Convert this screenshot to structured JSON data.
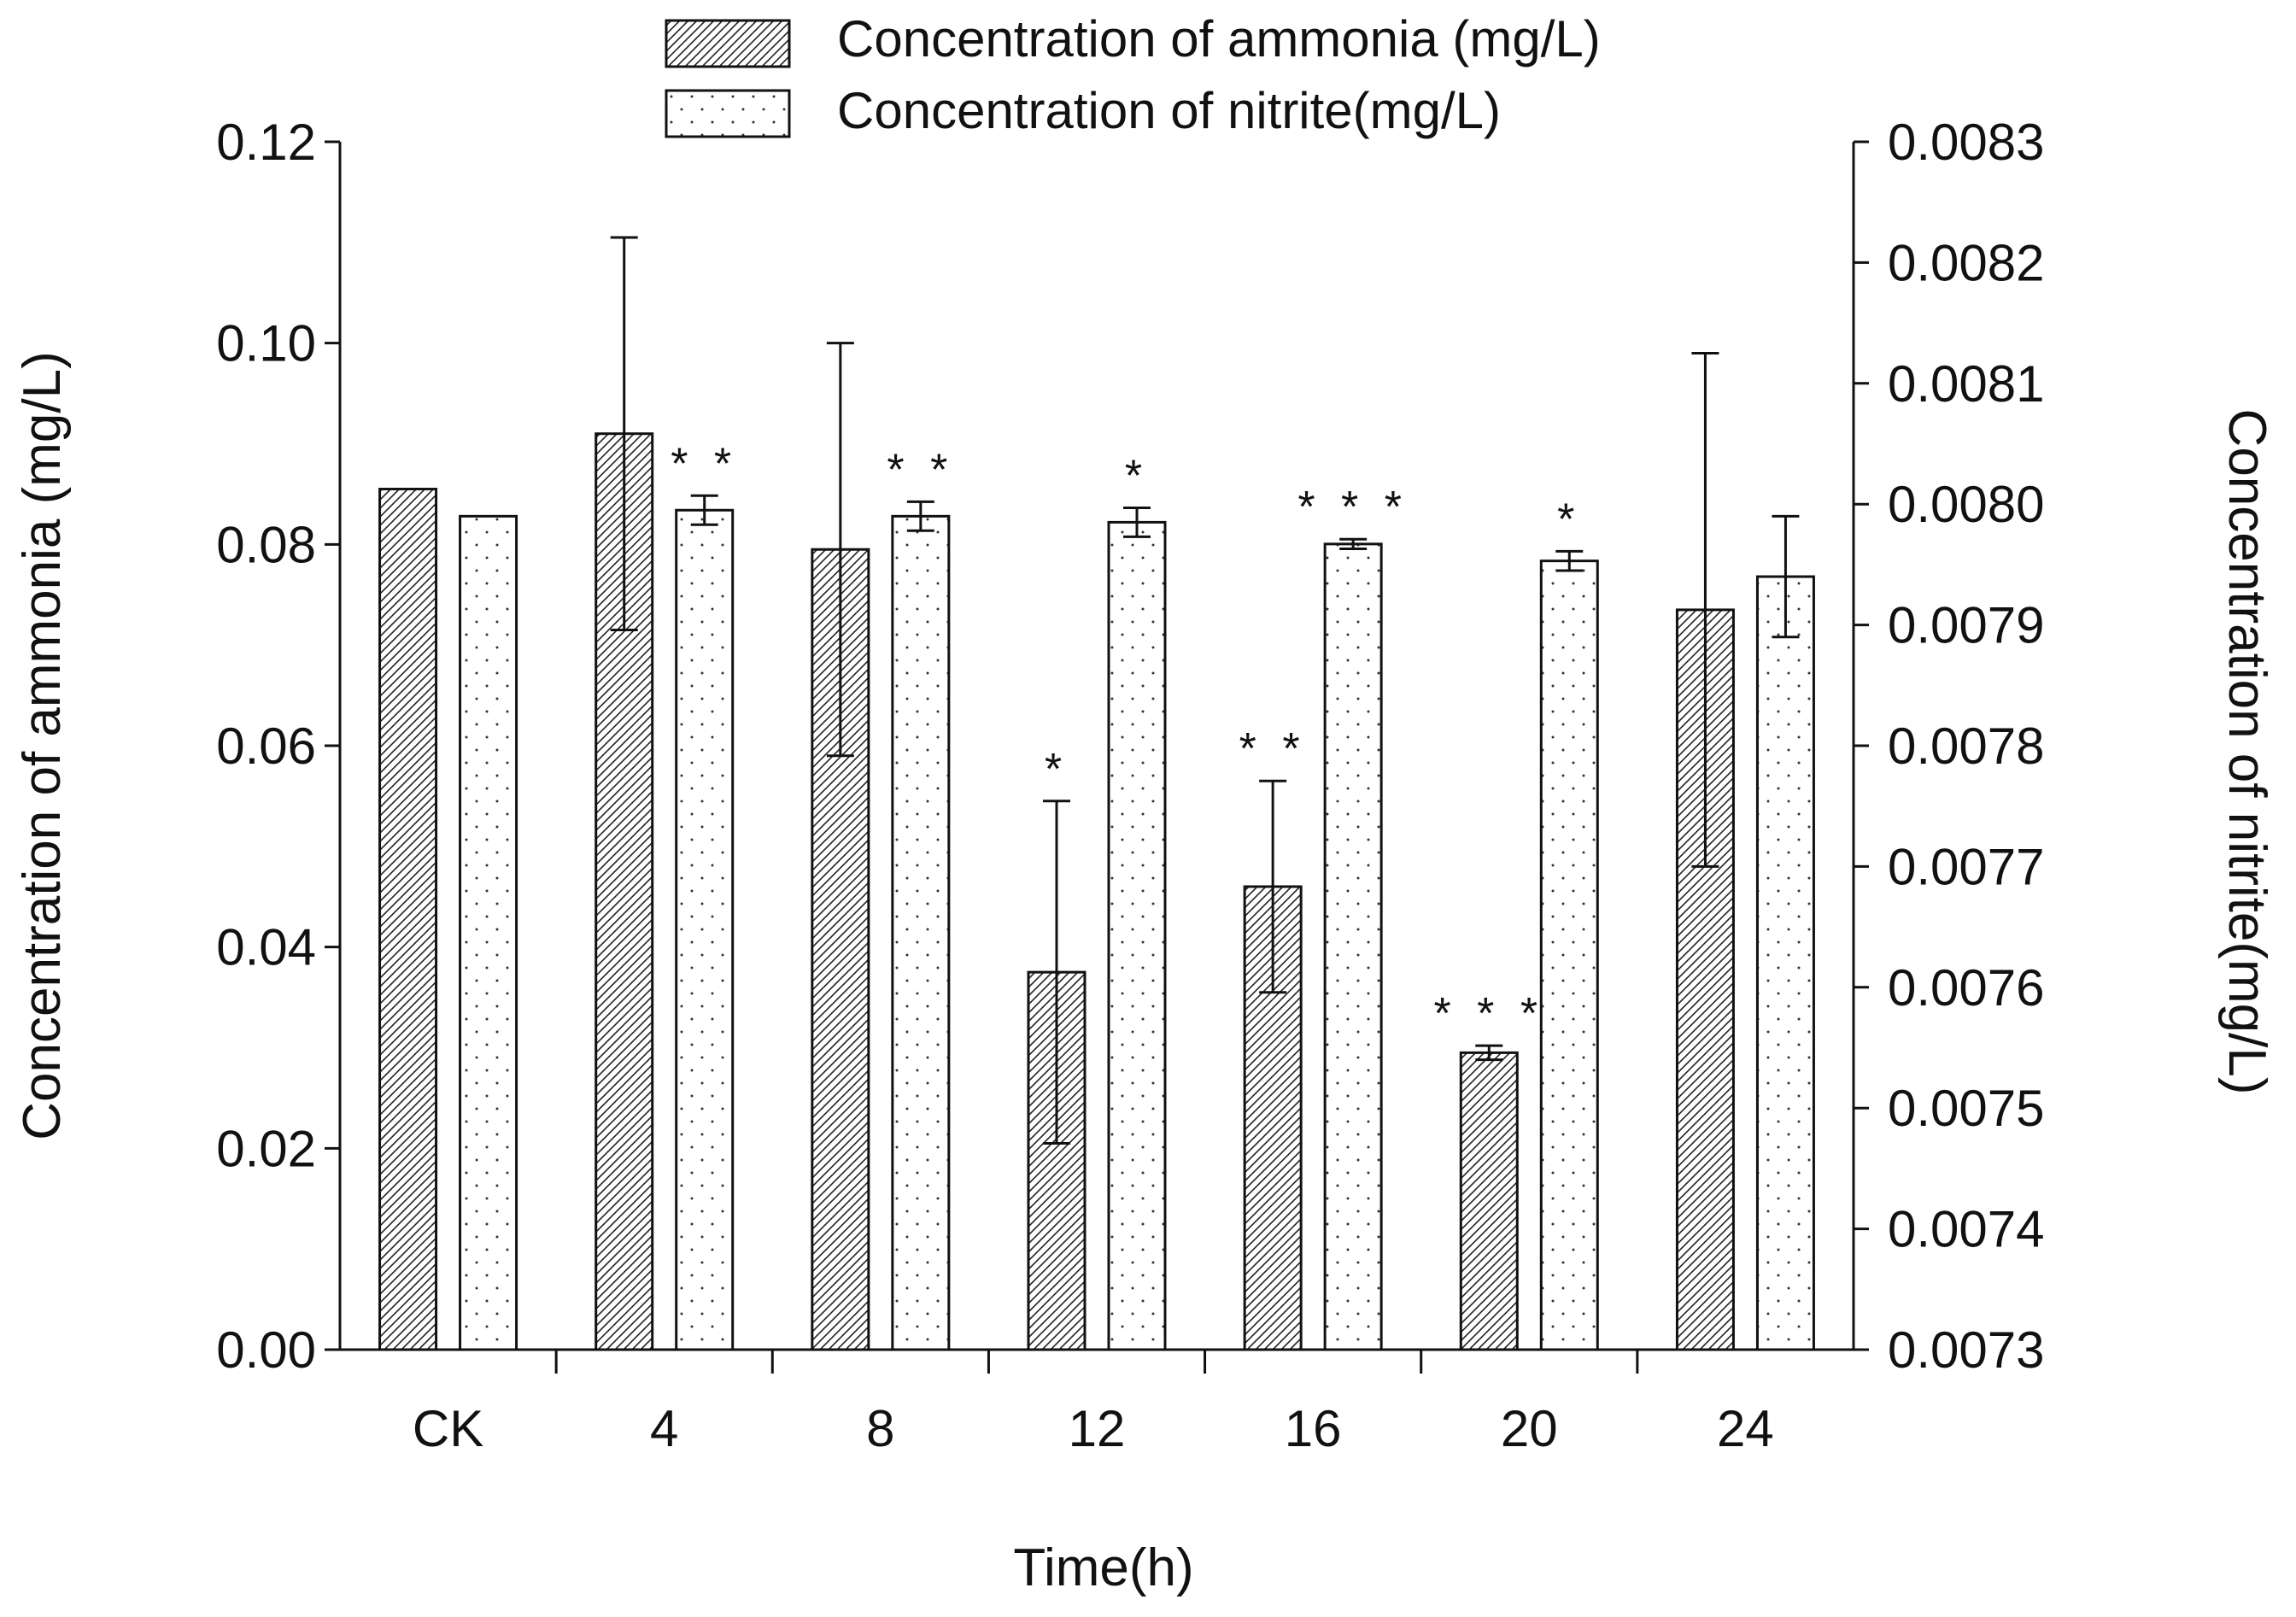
{
  "chart_data": {
    "type": "bar",
    "categories": [
      "CK",
      "4",
      "8",
      "12",
      "16",
      "20",
      "24"
    ],
    "xlabel": "Time(h)",
    "y_left_label": "Concentration of ammonia (mg/L)",
    "y_right_label": "Concentration of nitrite(mg/L)",
    "y_left_lim": [
      0,
      0.12
    ],
    "y_left_ticks": [
      "0.00",
      "0.02",
      "0.04",
      "0.06",
      "0.08",
      "0.10",
      "0.12"
    ],
    "y_right_lim": [
      0.0073,
      0.0083
    ],
    "y_right_ticks": [
      "0.0073",
      "0.0074",
      "0.0075",
      "0.0076",
      "0.0077",
      "0.0078",
      "0.0079",
      "0.0080",
      "0.0081",
      "0.0082",
      "0.0083"
    ],
    "series": [
      {
        "name": "Concentration of ammonia (mg/L)",
        "axis": "left",
        "pattern": "hatched",
        "values": [
          0.0855,
          0.091,
          0.0795,
          0.0375,
          0.046,
          0.0295,
          0.0735
        ],
        "errors": [
          0,
          0.0195,
          0.0205,
          0.017,
          0.0105,
          0.0007,
          0.0255
        ],
        "significance": [
          "",
          "",
          "",
          "*",
          "* *",
          "* * *",
          ""
        ]
      },
      {
        "name": "Concentration of nitrite(mg/L)",
        "axis": "right",
        "pattern": "dotted",
        "values": [
          0.00799,
          0.007995,
          0.00799,
          0.007985,
          0.007967,
          0.007953,
          0.00794
        ],
        "errors": [
          0,
          1.2e-05,
          1.2e-05,
          1.2e-05,
          4e-06,
          8e-06,
          5e-05
        ],
        "significance": [
          "",
          "* *",
          "* *",
          "*",
          "* * *",
          "*",
          ""
        ]
      }
    ],
    "legend_position": "top-center"
  }
}
